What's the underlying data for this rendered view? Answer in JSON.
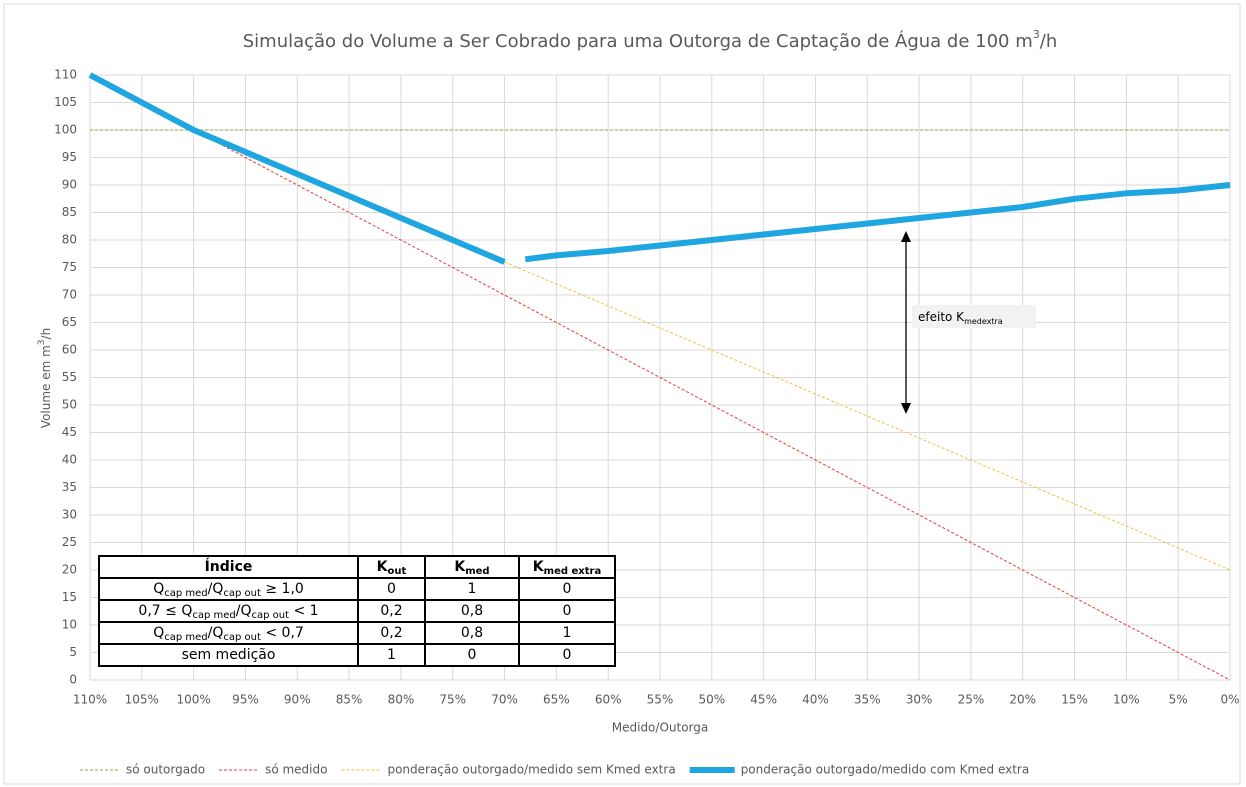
{
  "chart_data": {
    "type": "line",
    "title": [
      "Simulação do Volume a Ser Cobrado para uma Outorga de Captação de Água de 100 m",
      "3",
      "/h"
    ],
    "xlabel": "Medido/Outorga",
    "ylabel": [
      "Volume em m",
      "3",
      "/h"
    ],
    "x": [
      110,
      105,
      100,
      95,
      90,
      85,
      80,
      75,
      70,
      69,
      68,
      65,
      60,
      55,
      50,
      45,
      40,
      35,
      30,
      25,
      20,
      15,
      10,
      5,
      0
    ],
    "xlim": [
      110,
      0
    ],
    "xticks": [
      {
        "value": 110,
        "label": "110%"
      },
      {
        "value": 105,
        "label": "105%"
      },
      {
        "value": 100,
        "label": "100%"
      },
      {
        "value": 95,
        "label": "95%"
      },
      {
        "value": 90,
        "label": "90%"
      },
      {
        "value": 85,
        "label": "85%"
      },
      {
        "value": 80,
        "label": "80%"
      },
      {
        "value": 75,
        "label": "75%"
      },
      {
        "value": 70,
        "label": "70%"
      },
      {
        "value": 65,
        "label": "65%"
      },
      {
        "value": 60,
        "label": "60%"
      },
      {
        "value": 55,
        "label": "55%"
      },
      {
        "value": 50,
        "label": "50%"
      },
      {
        "value": 45,
        "label": "45%"
      },
      {
        "value": 40,
        "label": "40%"
      },
      {
        "value": 35,
        "label": "35%"
      },
      {
        "value": 30,
        "label": "30%"
      },
      {
        "value": 25,
        "label": "25%"
      },
      {
        "value": 20,
        "label": "20%"
      },
      {
        "value": 15,
        "label": "15%"
      },
      {
        "value": 10,
        "label": "10%"
      },
      {
        "value": 5,
        "label": "5%"
      },
      {
        "value": 0,
        "label": "0%"
      }
    ],
    "ylim": [
      0,
      110
    ],
    "yticks": [
      0,
      5,
      10,
      15,
      20,
      25,
      30,
      35,
      40,
      45,
      50,
      55,
      60,
      65,
      70,
      75,
      80,
      85,
      90,
      95,
      100,
      105,
      110
    ],
    "grid": true,
    "legend": "bottom",
    "series": [
      {
        "name": "só outorgado",
        "color": "#8fae3c",
        "linestyle": "dashed",
        "linewidth": 1,
        "values": [
          100,
          100,
          100,
          100,
          100,
          100,
          100,
          100,
          100,
          100,
          100,
          100,
          100,
          100,
          100,
          100,
          100,
          100,
          100,
          100,
          100,
          100,
          100,
          100,
          100
        ]
      },
      {
        "name": "só medido",
        "color": "#e0403a",
        "linestyle": "dashed",
        "linewidth": 1,
        "values": [
          110,
          105,
          100,
          95,
          90,
          85,
          80,
          75,
          70,
          69,
          68,
          65,
          60,
          55,
          50,
          45,
          40,
          35,
          30,
          25,
          20,
          15,
          10,
          5,
          0
        ]
      },
      {
        "name": "ponderação outorgado/medido sem Kmed extra",
        "color": "#f0c23c",
        "linestyle": "dashed",
        "linewidth": 1,
        "values": [
          110,
          105,
          100,
          96,
          92,
          88,
          84,
          80,
          76,
          75.2,
          74.4,
          72,
          68,
          64,
          60,
          56,
          52,
          48,
          44,
          40,
          36,
          32,
          28,
          24,
          20
        ]
      },
      {
        "name": "ponderação outorgado/medido com Kmed extra",
        "color": "#1fa6e0",
        "linestyle": "solid",
        "linewidth": 6,
        "values": [
          110,
          105,
          100,
          96,
          92,
          88,
          84,
          80,
          76,
          null,
          76.5,
          77.2,
          78,
          79,
          80,
          81,
          82,
          83,
          84,
          85,
          86,
          87.5,
          88.5,
          89,
          90
        ]
      }
    ],
    "annotation": [
      "efeito K",
      "medextra"
    ],
    "table": {
      "header": [
        [
          "Índice"
        ],
        [
          "K",
          "out"
        ],
        [
          "K",
          "med"
        ],
        [
          "K",
          "med extra"
        ]
      ],
      "rows": [
        [
          [
            "Q",
            "cap med",
            "/Q",
            "cap out",
            " ≥ 1,0"
          ],
          [
            "0"
          ],
          [
            "1"
          ],
          [
            "0"
          ]
        ],
        [
          [
            "0,7 ≤ Q",
            "cap med",
            "/Q",
            "cap out",
            " < 1"
          ],
          [
            "0,2"
          ],
          [
            "0,8"
          ],
          [
            "0"
          ]
        ],
        [
          [
            "Q",
            "cap med",
            "/Q",
            "cap out",
            " < 0,7"
          ],
          [
            "0,2"
          ],
          [
            "0,8"
          ],
          [
            "1"
          ]
        ],
        [
          [
            "sem medição"
          ],
          [
            "1"
          ],
          [
            "0"
          ],
          [
            "0"
          ]
        ]
      ]
    }
  }
}
